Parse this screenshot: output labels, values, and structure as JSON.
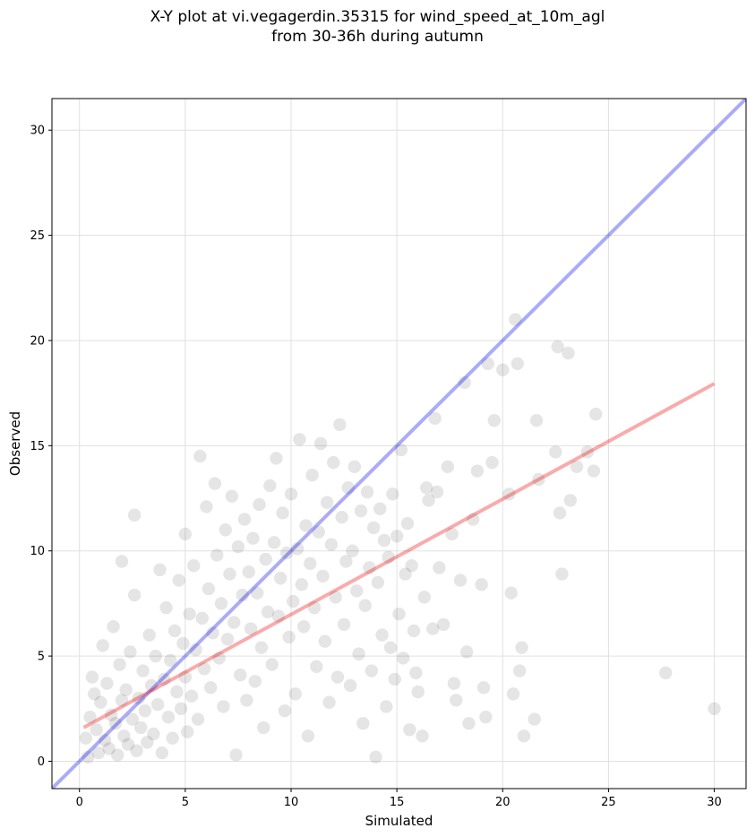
{
  "chart_data": {
    "type": "scatter",
    "title_line1": "X-Y plot at vi.vegagerdin.35315 for wind_speed_at_10m_agl",
    "title_line2": "from 30-36h during autumn",
    "xlabel": "Simulated",
    "ylabel": "Observed",
    "xlim": [
      -1.3,
      31.5
    ],
    "ylim": [
      -1.3,
      31.5
    ],
    "xticks": [
      0,
      5,
      10,
      15,
      20,
      25,
      30
    ],
    "yticks": [
      0,
      5,
      10,
      15,
      20,
      25,
      30
    ],
    "grid": true,
    "colors": {
      "points": "#000000",
      "identity_line": "#0000ee",
      "regression_line": "#ee0000",
      "grid": "#e0e0e0"
    },
    "identity_line": {
      "x": [
        -1.3,
        31.5
      ],
      "y": [
        -1.3,
        31.5
      ]
    },
    "regression_line": {
      "x": [
        0.2,
        30.0
      ],
      "y": [
        1.6,
        17.95
      ]
    },
    "points": [
      [
        0.3,
        1.1
      ],
      [
        0.4,
        0.2
      ],
      [
        0.5,
        2.1
      ],
      [
        0.6,
        4.0
      ],
      [
        0.7,
        3.2
      ],
      [
        0.8,
        1.5
      ],
      [
        0.9,
        0.4
      ],
      [
        1.0,
        2.8
      ],
      [
        1.1,
        5.5
      ],
      [
        1.2,
        1.0
      ],
      [
        1.3,
        3.7
      ],
      [
        1.4,
        0.6
      ],
      [
        1.5,
        2.2
      ],
      [
        1.6,
        6.4
      ],
      [
        1.7,
        1.8
      ],
      [
        1.8,
        0.3
      ],
      [
        1.9,
        4.6
      ],
      [
        2.0,
        2.9
      ],
      [
        2.0,
        9.5
      ],
      [
        2.1,
        1.2
      ],
      [
        2.2,
        3.4
      ],
      [
        2.3,
        0.8
      ],
      [
        2.4,
        5.2
      ],
      [
        2.5,
        2.0
      ],
      [
        2.6,
        11.7
      ],
      [
        2.6,
        7.9
      ],
      [
        2.7,
        0.5
      ],
      [
        2.8,
        3.0
      ],
      [
        2.9,
        1.6
      ],
      [
        3.0,
        4.3
      ],
      [
        3.1,
        2.4
      ],
      [
        3.2,
        0.9
      ],
      [
        3.3,
        6.0
      ],
      [
        3.4,
        3.6
      ],
      [
        3.5,
        1.3
      ],
      [
        3.6,
        5.0
      ],
      [
        3.7,
        2.7
      ],
      [
        3.8,
        9.1
      ],
      [
        3.9,
        0.4
      ],
      [
        4.0,
        3.9
      ],
      [
        4.1,
        7.3
      ],
      [
        4.2,
        2.1
      ],
      [
        4.3,
        4.8
      ],
      [
        4.4,
        1.1
      ],
      [
        4.5,
        6.2
      ],
      [
        4.6,
        3.3
      ],
      [
        4.7,
        8.6
      ],
      [
        4.8,
        2.5
      ],
      [
        4.9,
        5.6
      ],
      [
        5.0,
        4.0
      ],
      [
        5.0,
        10.8
      ],
      [
        5.1,
        1.4
      ],
      [
        5.2,
        7.0
      ],
      [
        5.3,
        3.1
      ],
      [
        5.4,
        9.3
      ],
      [
        5.5,
        5.3
      ],
      [
        5.6,
        2.0
      ],
      [
        5.7,
        14.5
      ],
      [
        5.8,
        6.8
      ],
      [
        5.9,
        4.4
      ],
      [
        6.0,
        12.1
      ],
      [
        6.1,
        8.2
      ],
      [
        6.2,
        3.5
      ],
      [
        6.3,
        6.1
      ],
      [
        6.4,
        13.2
      ],
      [
        6.5,
        9.8
      ],
      [
        6.6,
        4.9
      ],
      [
        6.7,
        7.5
      ],
      [
        6.8,
        2.6
      ],
      [
        6.9,
        11.0
      ],
      [
        7.0,
        5.8
      ],
      [
        7.1,
        8.9
      ],
      [
        7.2,
        12.6
      ],
      [
        7.3,
        6.6
      ],
      [
        7.4,
        0.3
      ],
      [
        7.5,
        10.2
      ],
      [
        7.6,
        4.1
      ],
      [
        7.7,
        7.9
      ],
      [
        7.8,
        11.5
      ],
      [
        7.9,
        2.9
      ],
      [
        8.0,
        9.0
      ],
      [
        8.1,
        6.3
      ],
      [
        8.2,
        10.6
      ],
      [
        8.3,
        3.8
      ],
      [
        8.4,
        8.0
      ],
      [
        8.5,
        12.2
      ],
      [
        8.6,
        5.4
      ],
      [
        8.7,
        1.6
      ],
      [
        8.8,
        9.6
      ],
      [
        8.9,
        7.1
      ],
      [
        9.0,
        13.1
      ],
      [
        9.1,
        4.6
      ],
      [
        9.2,
        10.4
      ],
      [
        9.3,
        14.4
      ],
      [
        9.4,
        6.9
      ],
      [
        9.5,
        8.7
      ],
      [
        9.6,
        11.8
      ],
      [
        9.7,
        2.4
      ],
      [
        9.8,
        9.9
      ],
      [
        9.9,
        5.9
      ],
      [
        10.0,
        12.7
      ],
      [
        10.1,
        7.6
      ],
      [
        10.2,
        3.2
      ],
      [
        10.3,
        10.1
      ],
      [
        10.4,
        15.3
      ],
      [
        10.5,
        8.4
      ],
      [
        10.6,
        6.4
      ],
      [
        10.7,
        11.2
      ],
      [
        10.8,
        1.2
      ],
      [
        10.9,
        9.4
      ],
      [
        11.0,
        13.6
      ],
      [
        11.1,
        7.3
      ],
      [
        11.2,
        4.5
      ],
      [
        11.3,
        10.9
      ],
      [
        11.4,
        15.1
      ],
      [
        11.5,
        8.8
      ],
      [
        11.6,
        5.7
      ],
      [
        11.7,
        12.3
      ],
      [
        11.8,
        2.8
      ],
      [
        11.9,
        10.3
      ],
      [
        12.0,
        14.2
      ],
      [
        12.1,
        7.8
      ],
      [
        12.2,
        4.0
      ],
      [
        12.3,
        16.0
      ],
      [
        12.4,
        11.6
      ],
      [
        12.5,
        6.5
      ],
      [
        12.6,
        9.5
      ],
      [
        12.7,
        13.0
      ],
      [
        12.8,
        3.6
      ],
      [
        12.9,
        10.0
      ],
      [
        13.0,
        14.0
      ],
      [
        13.1,
        8.1
      ],
      [
        13.2,
        5.1
      ],
      [
        13.3,
        11.9
      ],
      [
        13.4,
        1.8
      ],
      [
        13.5,
        7.4
      ],
      [
        13.6,
        12.8
      ],
      [
        13.7,
        9.2
      ],
      [
        13.8,
        4.3
      ],
      [
        13.9,
        11.1
      ],
      [
        14.0,
        0.2
      ],
      [
        14.1,
        8.5
      ],
      [
        14.2,
        12.0
      ],
      [
        14.3,
        6.0
      ],
      [
        14.4,
        10.5
      ],
      [
        14.5,
        2.6
      ],
      [
        14.6,
        9.7
      ],
      [
        14.7,
        5.4
      ],
      [
        14.8,
        12.7
      ],
      [
        14.9,
        3.9
      ],
      [
        15.0,
        10.7
      ],
      [
        15.1,
        7.0
      ],
      [
        15.2,
        14.8
      ],
      [
        15.3,
        4.9
      ],
      [
        15.4,
        8.9
      ],
      [
        15.5,
        11.3
      ],
      [
        15.6,
        1.5
      ],
      [
        15.7,
        9.3
      ],
      [
        15.8,
        6.2
      ],
      [
        15.9,
        4.2
      ],
      [
        16.0,
        3.3
      ],
      [
        16.2,
        1.2
      ],
      [
        16.3,
        7.8
      ],
      [
        16.4,
        13.0
      ],
      [
        16.5,
        12.4
      ],
      [
        16.7,
        6.3
      ],
      [
        16.8,
        16.3
      ],
      [
        16.9,
        12.8
      ],
      [
        17.0,
        9.2
      ],
      [
        17.2,
        6.5
      ],
      [
        17.4,
        14.0
      ],
      [
        17.6,
        10.8
      ],
      [
        17.7,
        3.7
      ],
      [
        17.8,
        2.9
      ],
      [
        18.0,
        8.6
      ],
      [
        18.2,
        18.0
      ],
      [
        18.3,
        5.2
      ],
      [
        18.4,
        1.8
      ],
      [
        18.6,
        11.5
      ],
      [
        18.8,
        13.8
      ],
      [
        19.0,
        8.4
      ],
      [
        19.1,
        3.5
      ],
      [
        19.2,
        2.1
      ],
      [
        19.3,
        18.9
      ],
      [
        19.5,
        14.2
      ],
      [
        19.6,
        16.2
      ],
      [
        20.0,
        18.6
      ],
      [
        20.3,
        12.7
      ],
      [
        20.4,
        8.0
      ],
      [
        20.5,
        3.2
      ],
      [
        20.6,
        21.0
      ],
      [
        20.7,
        18.9
      ],
      [
        20.8,
        4.3
      ],
      [
        20.9,
        5.4
      ],
      [
        21.0,
        1.2
      ],
      [
        21.5,
        2.0
      ],
      [
        21.6,
        16.2
      ],
      [
        21.7,
        13.4
      ],
      [
        22.5,
        14.7
      ],
      [
        22.6,
        19.7
      ],
      [
        22.7,
        11.8
      ],
      [
        22.8,
        8.9
      ],
      [
        23.1,
        19.4
      ],
      [
        23.2,
        12.4
      ],
      [
        23.5,
        14.0
      ],
      [
        24.0,
        14.7
      ],
      [
        24.3,
        13.8
      ],
      [
        24.4,
        16.5
      ],
      [
        27.7,
        4.2
      ],
      [
        30.0,
        2.5
      ]
    ]
  }
}
